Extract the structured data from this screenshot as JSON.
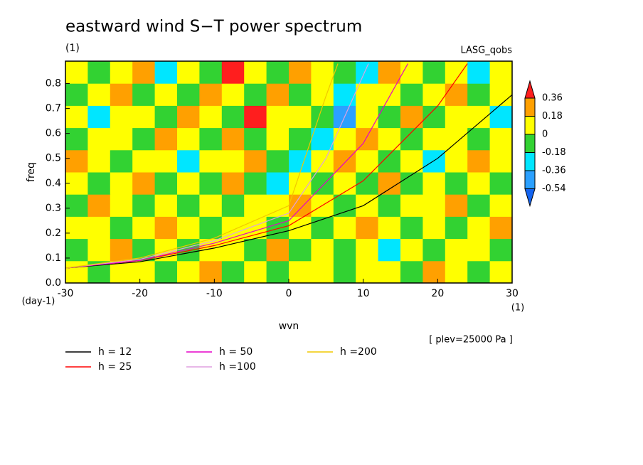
{
  "chart_data": {
    "type": "contour",
    "title": "eastward wind S−T power spectrum",
    "subtitle": "(1)",
    "source": "LASG_qobs",
    "xlabel": "wvn",
    "xunit": "(1)",
    "ylabel": "freq",
    "yunit": "(day-1)",
    "note": "[ plev=25000 Pa ]",
    "xlim": [
      -30,
      30
    ],
    "xticks": [
      -30,
      -20,
      -10,
      0,
      10,
      20,
      30
    ],
    "ylim": [
      0,
      0.89
    ],
    "yticks": [
      {
        "value": 0,
        "label": "0.0"
      },
      0.1,
      0.2,
      0.3,
      0.4,
      0.5,
      0.6,
      0.7,
      0.8
    ],
    "levels": [
      -0.54,
      -0.36,
      -0.18,
      0,
      0.18,
      0.36
    ],
    "level_colors": [
      "#1464f0",
      "#2ba0ff",
      "#00e6ff",
      "#32d232",
      "#ffff00",
      "#ffa000",
      "#ff1e1e"
    ],
    "field": [
      [
        0.1,
        -0.1,
        0.1,
        0.1,
        -0.1,
        0.1,
        0.2,
        -0.1,
        0.1,
        -0.1,
        0.1,
        0.1,
        -0.1,
        0.1,
        0.1,
        -0.1,
        0.2,
        0.1,
        -0.1,
        0.1
      ],
      [
        -0.1,
        0.1,
        0.2,
        -0.1,
        0.1,
        -0.1,
        0.1,
        0.1,
        -0.1,
        0.2,
        -0.1,
        0.1,
        -0.1,
        0.1,
        -0.3,
        0.1,
        -0.1,
        0.1,
        0.1,
        -0.1
      ],
      [
        0.1,
        0.1,
        -0.1,
        0.1,
        0.2,
        0.1,
        -0.1,
        0.1,
        0.1,
        -0.1,
        0.1,
        -0.1,
        0.1,
        0.2,
        0.1,
        -0.1,
        0.1,
        -0.1,
        0.1,
        0.2
      ],
      [
        -0.1,
        0.2,
        0.1,
        -0.1,
        0.1,
        -0.1,
        0.1,
        -0.1,
        0.1,
        0.1,
        0.2,
        0.1,
        -0.1,
        0.1,
        -0.1,
        0.1,
        0.1,
        0.2,
        -0.1,
        0.1
      ],
      [
        0.1,
        -0.1,
        0.1,
        0.2,
        -0.1,
        0.1,
        -0.1,
        0.2,
        -0.1,
        -0.3,
        0.1,
        -0.1,
        0.1,
        -0.1,
        0.2,
        -0.1,
        0.1,
        -0.1,
        0.1,
        -0.1
      ],
      [
        0.2,
        0.1,
        -0.1,
        0.1,
        0.1,
        -0.3,
        0.1,
        0.1,
        0.2,
        -0.1,
        -0.3,
        0.1,
        0.2,
        0.1,
        -0.1,
        0.1,
        -0.3,
        0.1,
        0.2,
        0.1
      ],
      [
        -0.1,
        0.1,
        0.1,
        -0.1,
        0.2,
        0.1,
        -0.1,
        0.2,
        -0.1,
        0.1,
        -0.1,
        -0.3,
        0.1,
        0.2,
        0.1,
        -0.1,
        0.1,
        0.1,
        -0.1,
        0.1
      ],
      [
        0.1,
        -0.3,
        0.1,
        0.1,
        -0.1,
        0.2,
        0.1,
        -0.1,
        0.4,
        0.1,
        0.1,
        -0.1,
        -0.4,
        0.1,
        -0.1,
        0.2,
        -0.1,
        0.1,
        0.1,
        -0.3
      ],
      [
        -0.1,
        0.1,
        0.2,
        -0.1,
        0.1,
        -0.1,
        0.2,
        0.1,
        -0.1,
        0.2,
        -0.1,
        0.1,
        -0.3,
        0.1,
        0.1,
        -0.1,
        0.1,
        0.2,
        -0.1,
        0.1
      ],
      [
        0.1,
        -0.1,
        0.1,
        0.2,
        -0.3,
        0.1,
        -0.1,
        0.4,
        0.1,
        -0.1,
        0.2,
        0.1,
        -0.1,
        -0.3,
        0.2,
        0.1,
        -0.1,
        0.1,
        -0.3,
        0.1
      ]
    ],
    "series": [
      {
        "name": "h = 12",
        "color": "#000000",
        "x": [
          -30,
          -20,
          -10,
          0,
          10,
          20,
          30
        ],
        "values": [
          0.06,
          0.085,
          0.14,
          0.21,
          0.31,
          0.5,
          0.755
        ]
      },
      {
        "name": "h = 25",
        "color": "#ff0000",
        "x": [
          -30,
          -20,
          -10,
          0,
          10,
          20,
          24
        ],
        "values": [
          0.06,
          0.09,
          0.15,
          0.23,
          0.41,
          0.71,
          0.88
        ]
      },
      {
        "name": "h = 50",
        "color": "#e600c8",
        "x": [
          -30,
          -20,
          -10,
          0,
          10,
          16
        ],
        "values": [
          0.06,
          0.09,
          0.16,
          0.25,
          0.56,
          0.88
        ]
      },
      {
        "name": "h =100",
        "color": "#e0a0e0",
        "x": [
          -30,
          -20,
          -10,
          0,
          5,
          10.7
        ],
        "values": [
          0.06,
          0.095,
          0.17,
          0.28,
          0.5,
          0.88
        ]
      },
      {
        "name": "h =200",
        "color": "#f0c800",
        "x": [
          -30,
          -20,
          -10,
          0,
          5,
          6.6
        ],
        "values": [
          0.06,
          0.1,
          0.18,
          0.31,
          0.75,
          0.88
        ]
      }
    ]
  }
}
